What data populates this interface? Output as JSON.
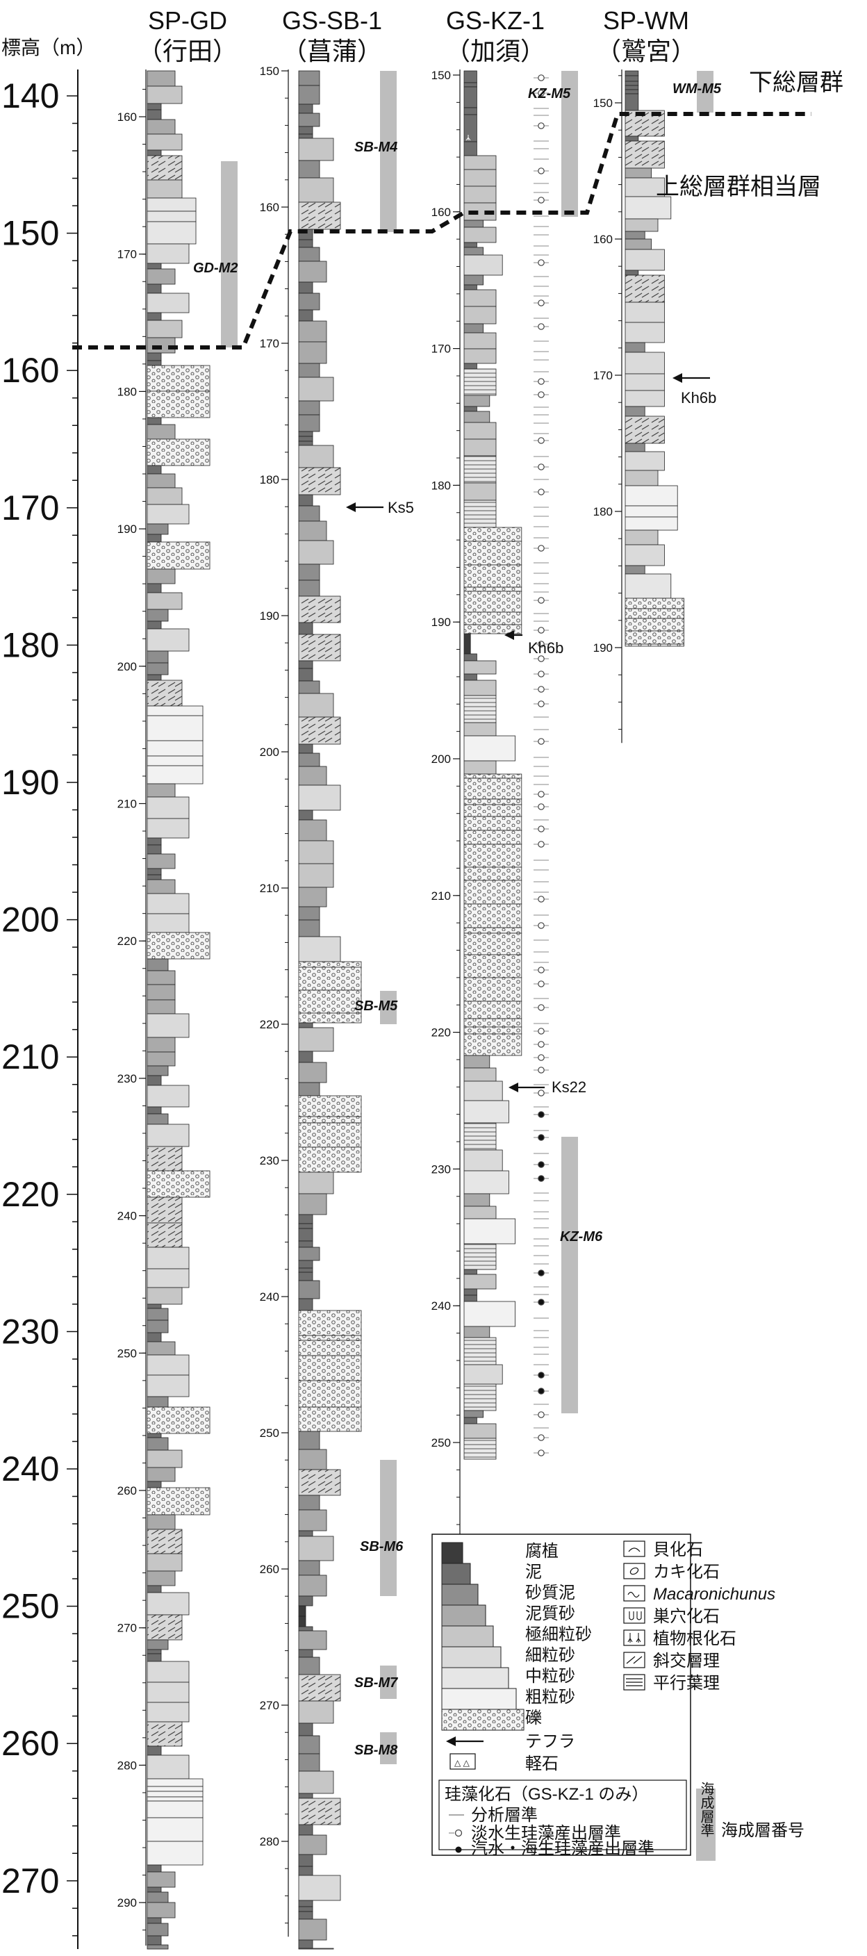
{
  "figure": {
    "elevation_axis": {
      "label": "標高（m）",
      "ticks": [
        "140",
        "150",
        "160",
        "170",
        "180",
        "190",
        "200",
        "210",
        "220",
        "230",
        "240",
        "250",
        "260",
        "270"
      ]
    },
    "columns": [
      {
        "id": "gd",
        "name": "SP-GD",
        "place": "（行田）",
        "depth_ticks": [
          "160",
          "170",
          "180",
          "190",
          "200",
          "210",
          "220",
          "230",
          "240",
          "250",
          "260",
          "270",
          "280",
          "290"
        ],
        "marine_units": [
          "GD-M2"
        ],
        "tephra": []
      },
      {
        "id": "sb",
        "name": "GS-SB-1",
        "place": "（菖蒲）",
        "depth_ticks": [
          "150",
          "160",
          "170",
          "180",
          "190",
          "200",
          "210",
          "220",
          "230",
          "240",
          "250",
          "260",
          "270",
          "280"
        ],
        "marine_units": [
          "SB-M4",
          "SB-M5",
          "SB-M6",
          "SB-M7",
          "SB-M8"
        ],
        "tephra": [
          "Ks5"
        ]
      },
      {
        "id": "kz",
        "name": "GS-KZ-1",
        "place": "（加須）",
        "depth_ticks": [
          "150",
          "160",
          "170",
          "180",
          "190",
          "200",
          "210",
          "220",
          "230",
          "240",
          "250"
        ],
        "marine_units": [
          "KZ-M5",
          "KZ-M6"
        ],
        "tephra": [
          "Kh6b",
          "Ks22"
        ]
      },
      {
        "id": "wm",
        "name": "SP-WM",
        "place": "（鷲宮）",
        "depth_ticks": [
          "150",
          "160",
          "170",
          "180",
          "190"
        ],
        "marine_units": [
          "WM-M5"
        ],
        "tephra": [
          "Kh6b"
        ]
      }
    ],
    "group_labels": [
      "下総層群",
      "上総層群相当層"
    ],
    "legend": {
      "lithology": [
        "腐植",
        "泥",
        "砂質泥",
        "泥質砂",
        "極細粒砂",
        "細粒砂",
        "中粒砂",
        "粗粒砂",
        "礫"
      ],
      "symbols": [
        "テフラ",
        "軽石"
      ],
      "fossils": [
        {
          "icon": "shell-fossil-icon",
          "label": "貝化石"
        },
        {
          "icon": "oyster-fossil-icon",
          "label": "カキ化石"
        },
        {
          "icon": "macaronichnus-icon",
          "label": "Macaronichunus"
        },
        {
          "icon": "burrow-icon",
          "label": "巣穴化石"
        },
        {
          "icon": "root-icon",
          "label": "植物根化石"
        },
        {
          "icon": "cross-bedding-icon",
          "label": "斜交層理"
        },
        {
          "icon": "parallel-lamination-icon",
          "label": "平行葉理"
        }
      ],
      "diatom_title": "珪藻化石（GS-KZ-1 のみ）",
      "diatom_items": [
        "分析層準",
        "淡水生珪藻産出層準",
        "汽水・海生珪藻産出層準"
      ],
      "marine_key_bar": "海成層準",
      "marine_key_label": "海成層番号"
    },
    "colors": {
      "humus": "#3b3b3b",
      "mud": "#6e6e6e",
      "sandy_mud": "#8e8e8e",
      "muddy_sand": "#aaaaaa",
      "vf_sand": "#c6c6c6",
      "f_sand": "#dadada",
      "m_sand": "#e6e6e6",
      "c_sand": "#f2f2f2",
      "marine_bar": "#bdbdbd",
      "ink": "#111111"
    }
  }
}
